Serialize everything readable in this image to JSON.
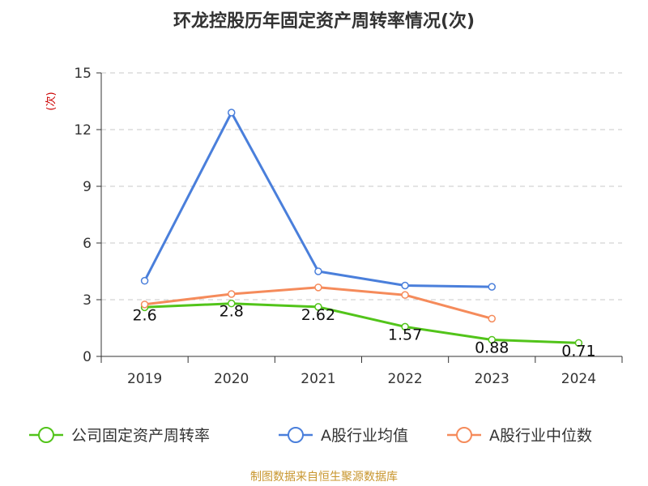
{
  "chart_data": {
    "type": "line",
    "title": "环龙控股历年固定资产周转率情况(次)",
    "unit_label": "(次)",
    "categories": [
      "2019",
      "2020",
      "2021",
      "2022",
      "2023",
      "2024"
    ],
    "ylim": [
      0,
      15
    ],
    "yticks": [
      0,
      3,
      6,
      9,
      12,
      15
    ],
    "grid": true,
    "legend_position": "bottom",
    "series": [
      {
        "name": "公司固定资产周转率",
        "color": "#52c41a",
        "values": [
          2.6,
          2.8,
          2.62,
          1.57,
          0.88,
          0.71
        ],
        "labels": [
          "2.6",
          "2.8",
          "2.62",
          "1.57",
          "0.88",
          "0.71"
        ]
      },
      {
        "name": "A股行业均值",
        "color": "#4a7fdb",
        "values": [
          4.0,
          12.9,
          4.5,
          3.75,
          3.68,
          null
        ]
      },
      {
        "name": "A股行业中位数",
        "color": "#f58b5b",
        "values": [
          2.75,
          3.3,
          3.65,
          3.25,
          2.0,
          null
        ]
      }
    ]
  },
  "source": "制图数据来自恒生聚源数据库"
}
